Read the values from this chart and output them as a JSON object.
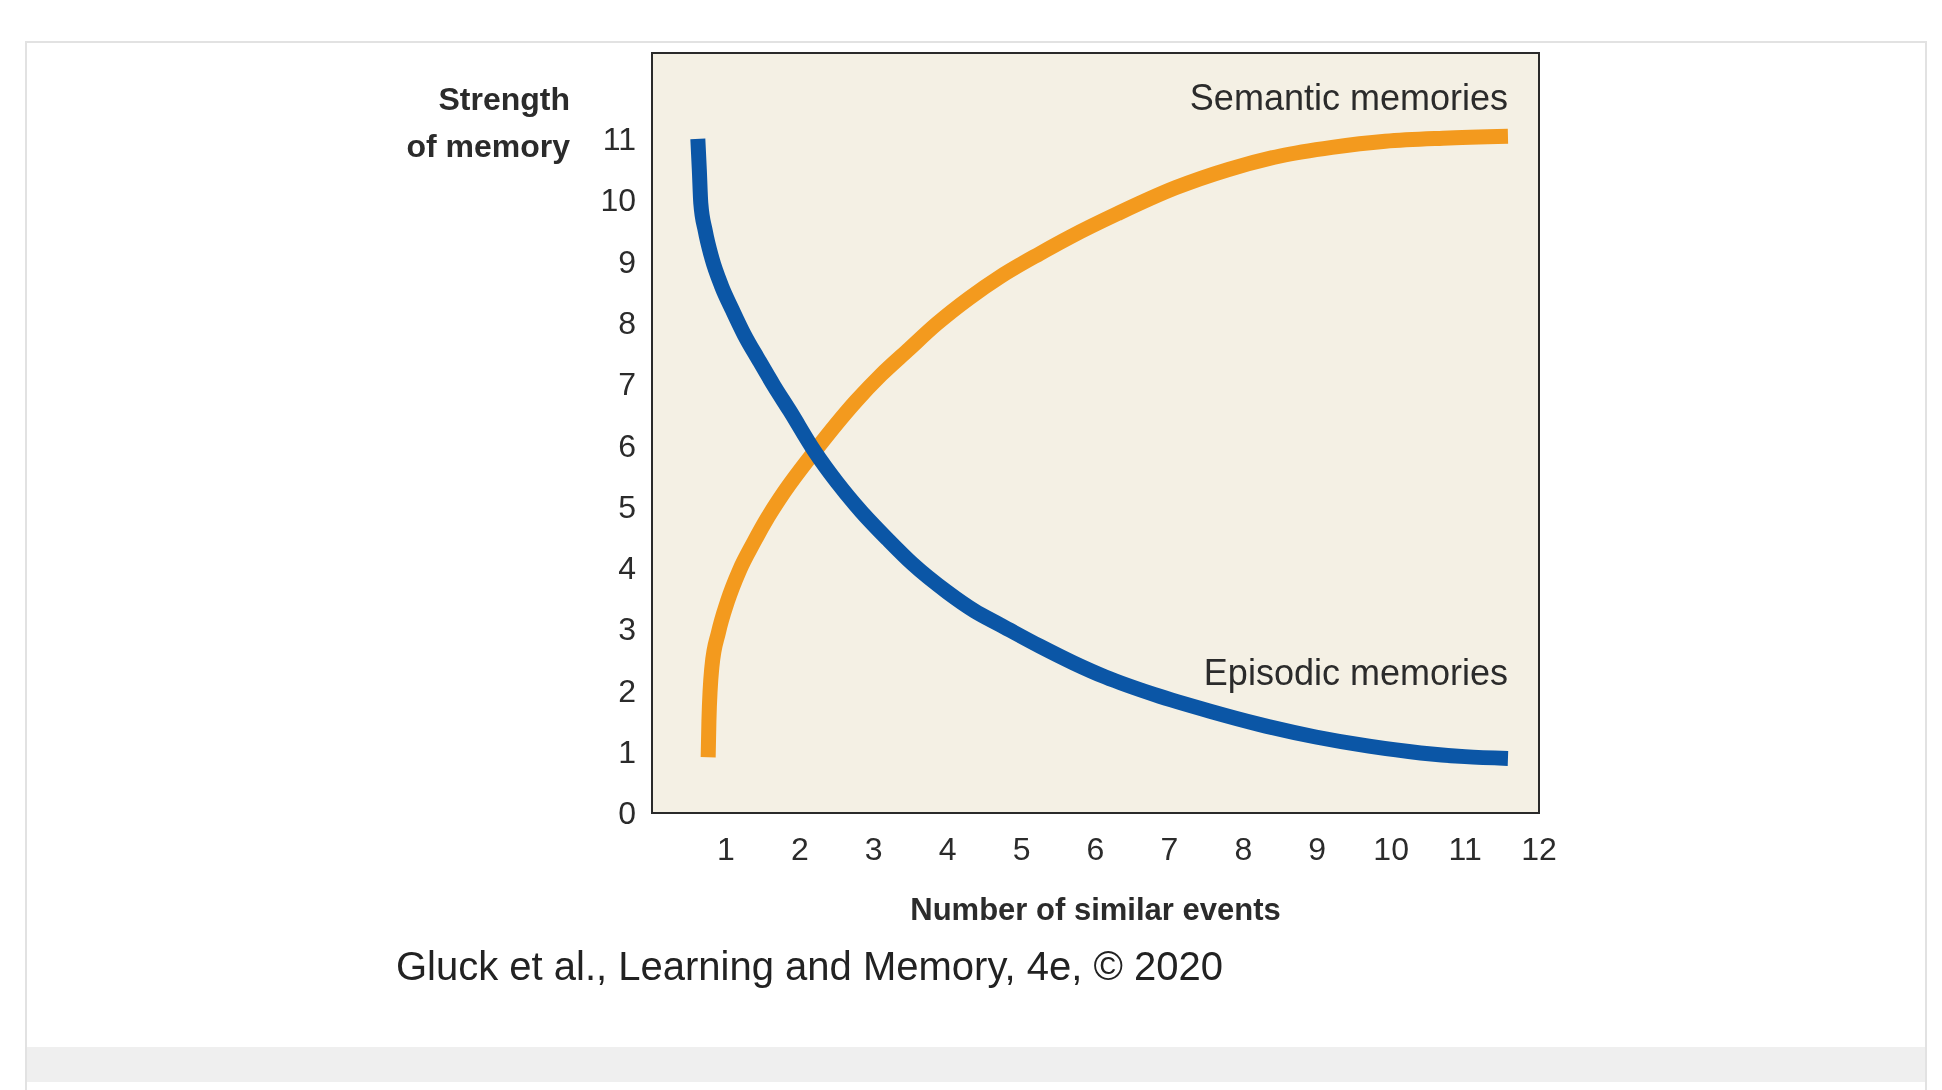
{
  "chart_data": {
    "type": "line",
    "xlabel": "Number of similar events",
    "ylabel": "Strength of memory",
    "xlim": [
      0,
      12
    ],
    "xticks": [
      1,
      2,
      3,
      4,
      5,
      6,
      7,
      8,
      9,
      10,
      11,
      12
    ],
    "ylim": [
      0,
      12.4
    ],
    "yticks": [
      0,
      1,
      2,
      3,
      4,
      5,
      6,
      7,
      8,
      9,
      10,
      11
    ],
    "series": [
      {
        "name": "Semantic memories",
        "color": "#f39a1e",
        "x": [
          0.76,
          0.77,
          0.81,
          0.9,
          1.02,
          1.18,
          1.37,
          1.57,
          1.79,
          2.2,
          2.76,
          3.1,
          3.46,
          3.85,
          4.29,
          4.71,
          5.25,
          5.66,
          6.3,
          7.08,
          7.8,
          8.5,
          9.2,
          9.92,
          10.7,
          11.58
        ],
        "values": [
          0.91,
          1.5,
          2.38,
          2.95,
          3.45,
          3.95,
          4.4,
          4.83,
          5.24,
          5.9,
          6.72,
          7.15,
          7.55,
          7.98,
          8.4,
          8.75,
          9.13,
          9.4,
          9.78,
          10.2,
          10.5,
          10.72,
          10.86,
          10.96,
          11.01,
          11.04
        ]
      },
      {
        "name": "Episodic memories",
        "color": "#0b56a6",
        "x": [
          0.62,
          0.64,
          0.66,
          0.72,
          0.81,
          0.94,
          1.09,
          1.25,
          1.44,
          1.65,
          1.86,
          2.2,
          2.5,
          2.83,
          3.2,
          3.52,
          4.0,
          4.36,
          4.71,
          5.25,
          5.7,
          6.13,
          6.8,
          7.55,
          8.2,
          8.98,
          9.7,
          10.4,
          11.0,
          11.58
        ],
        "values": [
          11.0,
          10.5,
          9.95,
          9.5,
          9.05,
          8.6,
          8.2,
          7.8,
          7.4,
          6.97,
          6.57,
          5.9,
          5.4,
          4.92,
          4.45,
          4.07,
          3.6,
          3.3,
          3.07,
          2.72,
          2.45,
          2.22,
          1.93,
          1.66,
          1.45,
          1.24,
          1.09,
          0.98,
          0.92,
          0.89
        ]
      }
    ],
    "annotations": [
      "Gluck et al., Learning and Memory, 4e, © 2020"
    ]
  }
}
